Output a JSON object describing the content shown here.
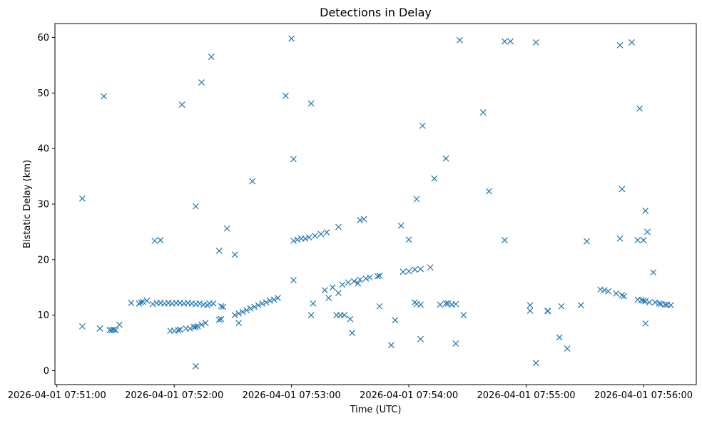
{
  "chart_data": {
    "type": "scatter",
    "title": "Detections in Delay",
    "xlabel": "Time (UTC)",
    "ylabel": "Bistatic Delay (km)",
    "marker": "x",
    "color": "#1f77b4",
    "grid": false,
    "xlim": [
      "2026-04-01 07:50:59",
      "2026-04-01 07:56:27"
    ],
    "ylim": [
      -2.5,
      62.5
    ],
    "x_ticks": [
      "2026-04-01 07:51:00",
      "2026-04-01 07:52:00",
      "2026-04-01 07:53:00",
      "2026-04-01 07:54:00",
      "2026-04-01 07:55:00",
      "2026-04-01 07:56:00"
    ],
    "y_ticks": [
      "0",
      "10",
      "20",
      "30",
      "40",
      "50",
      "60"
    ],
    "points": [
      [
        "07:51:13",
        8.0
      ],
      [
        "07:51:13",
        31.0
      ],
      [
        "07:51:22",
        7.6
      ],
      [
        "07:51:22",
        7.6
      ],
      [
        "07:51:24",
        49.4
      ],
      [
        "07:51:27",
        7.3
      ],
      [
        "07:51:28",
        7.3
      ],
      [
        "07:51:29",
        7.4
      ],
      [
        "07:51:30",
        7.3
      ],
      [
        "07:51:32",
        8.3
      ],
      [
        "07:51:38",
        12.2
      ],
      [
        "07:51:42",
        12.1
      ],
      [
        "07:51:43",
        12.3
      ],
      [
        "07:51:44",
        12.4
      ],
      [
        "07:51:46",
        12.6
      ],
      [
        "07:51:49",
        12.0
      ],
      [
        "07:51:50",
        23.4
      ],
      [
        "07:51:51",
        12.2
      ],
      [
        "07:51:53",
        23.5
      ],
      [
        "07:51:53",
        12.2
      ],
      [
        "07:51:55",
        12.1
      ],
      [
        "07:51:57",
        12.2
      ],
      [
        "07:51:59",
        12.1
      ],
      [
        "07:52:01",
        12.2
      ],
      [
        "07:52:03",
        12.2
      ],
      [
        "07:52:05",
        12.1
      ],
      [
        "07:52:07",
        12.2
      ],
      [
        "07:52:09",
        12.1
      ],
      [
        "07:52:11",
        12.0
      ],
      [
        "07:52:13",
        12.1
      ],
      [
        "07:52:15",
        11.9
      ],
      [
        "07:52:17",
        11.8
      ],
      [
        "07:51:58",
        7.2
      ],
      [
        "07:52:00",
        7.2
      ],
      [
        "07:52:02",
        7.3
      ],
      [
        "07:52:03",
        7.4
      ],
      [
        "07:52:06",
        7.6
      ],
      [
        "07:52:08",
        7.6
      ],
      [
        "07:52:10",
        7.9
      ],
      [
        "07:52:11",
        7.9
      ],
      [
        "07:52:12",
        8.0
      ],
      [
        "07:52:14",
        8.3
      ],
      [
        "07:52:16",
        8.6
      ],
      [
        "07:52:04",
        47.9
      ],
      [
        "07:52:11",
        0.8
      ],
      [
        "07:52:11",
        29.6
      ],
      [
        "07:52:14",
        51.9
      ],
      [
        "07:52:19",
        56.5
      ],
      [
        "07:52:18",
        12.1
      ],
      [
        "07:52:20",
        12.1
      ],
      [
        "07:52:23",
        21.6
      ],
      [
        "07:52:23",
        9.2
      ],
      [
        "07:52:24",
        9.3
      ],
      [
        "07:52:24",
        11.6
      ],
      [
        "07:52:25",
        11.5
      ],
      [
        "07:52:27",
        25.6
      ],
      [
        "07:52:31",
        20.9
      ],
      [
        "07:52:33",
        8.6
      ],
      [
        "07:52:31",
        10.0
      ],
      [
        "07:52:33",
        10.3
      ],
      [
        "07:52:35",
        10.6
      ],
      [
        "07:52:37",
        10.9
      ],
      [
        "07:52:39",
        11.2
      ],
      [
        "07:52:41",
        11.5
      ],
      [
        "07:52:43",
        11.8
      ],
      [
        "07:52:45",
        12.1
      ],
      [
        "07:52:47",
        12.3
      ],
      [
        "07:52:49",
        12.6
      ],
      [
        "07:52:51",
        12.8
      ],
      [
        "07:52:53",
        13.1
      ],
      [
        "07:52:40",
        34.1
      ],
      [
        "07:52:57",
        49.5
      ],
      [
        "07:53:00",
        59.8
      ],
      [
        "07:53:01",
        38.1
      ],
      [
        "07:53:01",
        16.3
      ],
      [
        "07:53:01",
        23.4
      ],
      [
        "07:53:03",
        23.6
      ],
      [
        "07:53:05",
        23.8
      ],
      [
        "07:53:07",
        23.8
      ],
      [
        "07:53:09",
        24.0
      ],
      [
        "07:53:12",
        24.3
      ],
      [
        "07:53:15",
        24.6
      ],
      [
        "07:53:18",
        24.9
      ],
      [
        "07:53:10",
        48.1
      ],
      [
        "07:53:10",
        10.0
      ],
      [
        "07:53:11",
        12.1
      ],
      [
        "07:53:17",
        14.5
      ],
      [
        "07:53:19",
        13.1
      ],
      [
        "07:53:21",
        15.0
      ],
      [
        "07:53:23",
        10.0
      ],
      [
        "07:53:24",
        14.0
      ],
      [
        "07:53:24",
        25.9
      ],
      [
        "07:53:25",
        10.0
      ],
      [
        "07:53:26",
        15.5
      ],
      [
        "07:53:27",
        10.0
      ],
      [
        "07:53:29",
        15.9
      ],
      [
        "07:53:30",
        9.3
      ],
      [
        "07:53:31",
        6.8
      ],
      [
        "07:53:32",
        16.1
      ],
      [
        "07:53:34",
        15.7
      ],
      [
        "07:53:35",
        16.4
      ],
      [
        "07:53:35",
        27.1
      ],
      [
        "07:53:37",
        27.3
      ],
      [
        "07:53:38",
        16.6
      ],
      [
        "07:53:40",
        16.8
      ],
      [
        "07:53:44",
        17.0
      ],
      [
        "07:53:45",
        17.1
      ],
      [
        "07:53:45",
        11.6
      ],
      [
        "07:53:51",
        4.6
      ],
      [
        "07:53:53",
        9.1
      ],
      [
        "07:53:56",
        26.1
      ],
      [
        "07:53:57",
        17.8
      ],
      [
        "07:54:00",
        17.9
      ],
      [
        "07:54:00",
        23.6
      ],
      [
        "07:54:03",
        18.2
      ],
      [
        "07:54:03",
        12.3
      ],
      [
        "07:54:04",
        12.0
      ],
      [
        "07:54:04",
        30.9
      ],
      [
        "07:54:06",
        18.3
      ],
      [
        "07:54:06",
        11.9
      ],
      [
        "07:54:06",
        5.7
      ],
      [
        "07:54:07",
        44.1
      ],
      [
        "07:54:11",
        18.6
      ],
      [
        "07:54:13",
        34.6
      ],
      [
        "07:54:16",
        11.9
      ],
      [
        "07:54:19",
        12.1
      ],
      [
        "07:54:20",
        12.1
      ],
      [
        "07:54:22",
        11.9
      ],
      [
        "07:54:24",
        12.0
      ],
      [
        "07:54:19",
        38.2
      ],
      [
        "07:54:24",
        4.9
      ],
      [
        "07:54:26",
        59.5
      ],
      [
        "07:54:28",
        10.0
      ],
      [
        "07:54:38",
        46.5
      ],
      [
        "07:54:41",
        32.3
      ],
      [
        "07:54:49",
        23.5
      ],
      [
        "07:54:49",
        59.3
      ],
      [
        "07:54:52",
        59.3
      ],
      [
        "07:55:02",
        11.8
      ],
      [
        "07:55:02",
        10.8
      ],
      [
        "07:55:05",
        1.4
      ],
      [
        "07:55:05",
        59.1
      ],
      [
        "07:55:11",
        10.8
      ],
      [
        "07:55:11",
        10.7
      ],
      [
        "07:55:17",
        6.0
      ],
      [
        "07:55:18",
        11.6
      ],
      [
        "07:55:21",
        4.0
      ],
      [
        "07:55:28",
        11.8
      ],
      [
        "07:55:31",
        23.3
      ],
      [
        "07:55:38",
        14.6
      ],
      [
        "07:55:40",
        14.5
      ],
      [
        "07:55:42",
        14.3
      ],
      [
        "07:55:46",
        13.9
      ],
      [
        "07:55:48",
        23.8
      ],
      [
        "07:55:48",
        58.6
      ],
      [
        "07:55:49",
        32.7
      ],
      [
        "07:55:49",
        13.6
      ],
      [
        "07:55:50",
        13.4
      ],
      [
        "07:55:54",
        59.1
      ],
      [
        "07:55:57",
        12.8
      ],
      [
        "07:55:57",
        23.5
      ],
      [
        "07:55:58",
        47.2
      ],
      [
        "07:55:59",
        12.7
      ],
      [
        "07:56:00",
        23.5
      ],
      [
        "07:56:00",
        12.6
      ],
      [
        "07:56:01",
        12.5
      ],
      [
        "07:56:01",
        8.5
      ],
      [
        "07:56:01",
        28.8
      ],
      [
        "07:56:02",
        25.0
      ],
      [
        "07:56:03",
        12.3
      ],
      [
        "07:56:05",
        17.7
      ],
      [
        "07:56:06",
        12.3
      ],
      [
        "07:56:08",
        12.1
      ],
      [
        "07:56:09",
        12.0
      ],
      [
        "07:56:11",
        11.9
      ],
      [
        "07:56:12",
        11.9
      ],
      [
        "07:56:14",
        11.8
      ]
    ]
  }
}
